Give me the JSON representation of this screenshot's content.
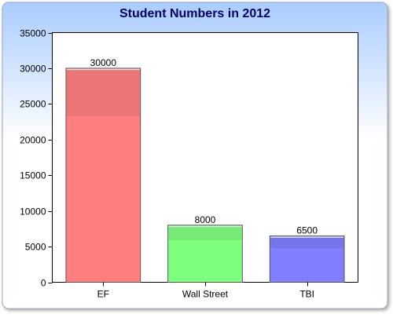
{
  "chart_data": {
    "type": "bar",
    "title": "Student Numbers in 2012",
    "xlabel": "",
    "ylabel": "",
    "categories": [
      "EF",
      "Wall Street",
      "TBI"
    ],
    "values": [
      30000,
      8000,
      6500
    ],
    "data_labels": [
      "30000",
      "8000",
      "6500"
    ],
    "colors": [
      "#ff7f7f",
      "#7fff7f",
      "#7f7fff"
    ],
    "ylim": [
      0,
      35000
    ],
    "yticks": [
      0,
      5000,
      10000,
      15000,
      20000,
      25000,
      30000,
      35000
    ],
    "ytick_labels": [
      "0",
      "5000",
      "10000",
      "15000",
      "20000",
      "25000",
      "30000",
      "35000"
    ],
    "grid": false,
    "legend": "none",
    "background_gradient": [
      "#aaccff",
      "#ffffff"
    ]
  }
}
